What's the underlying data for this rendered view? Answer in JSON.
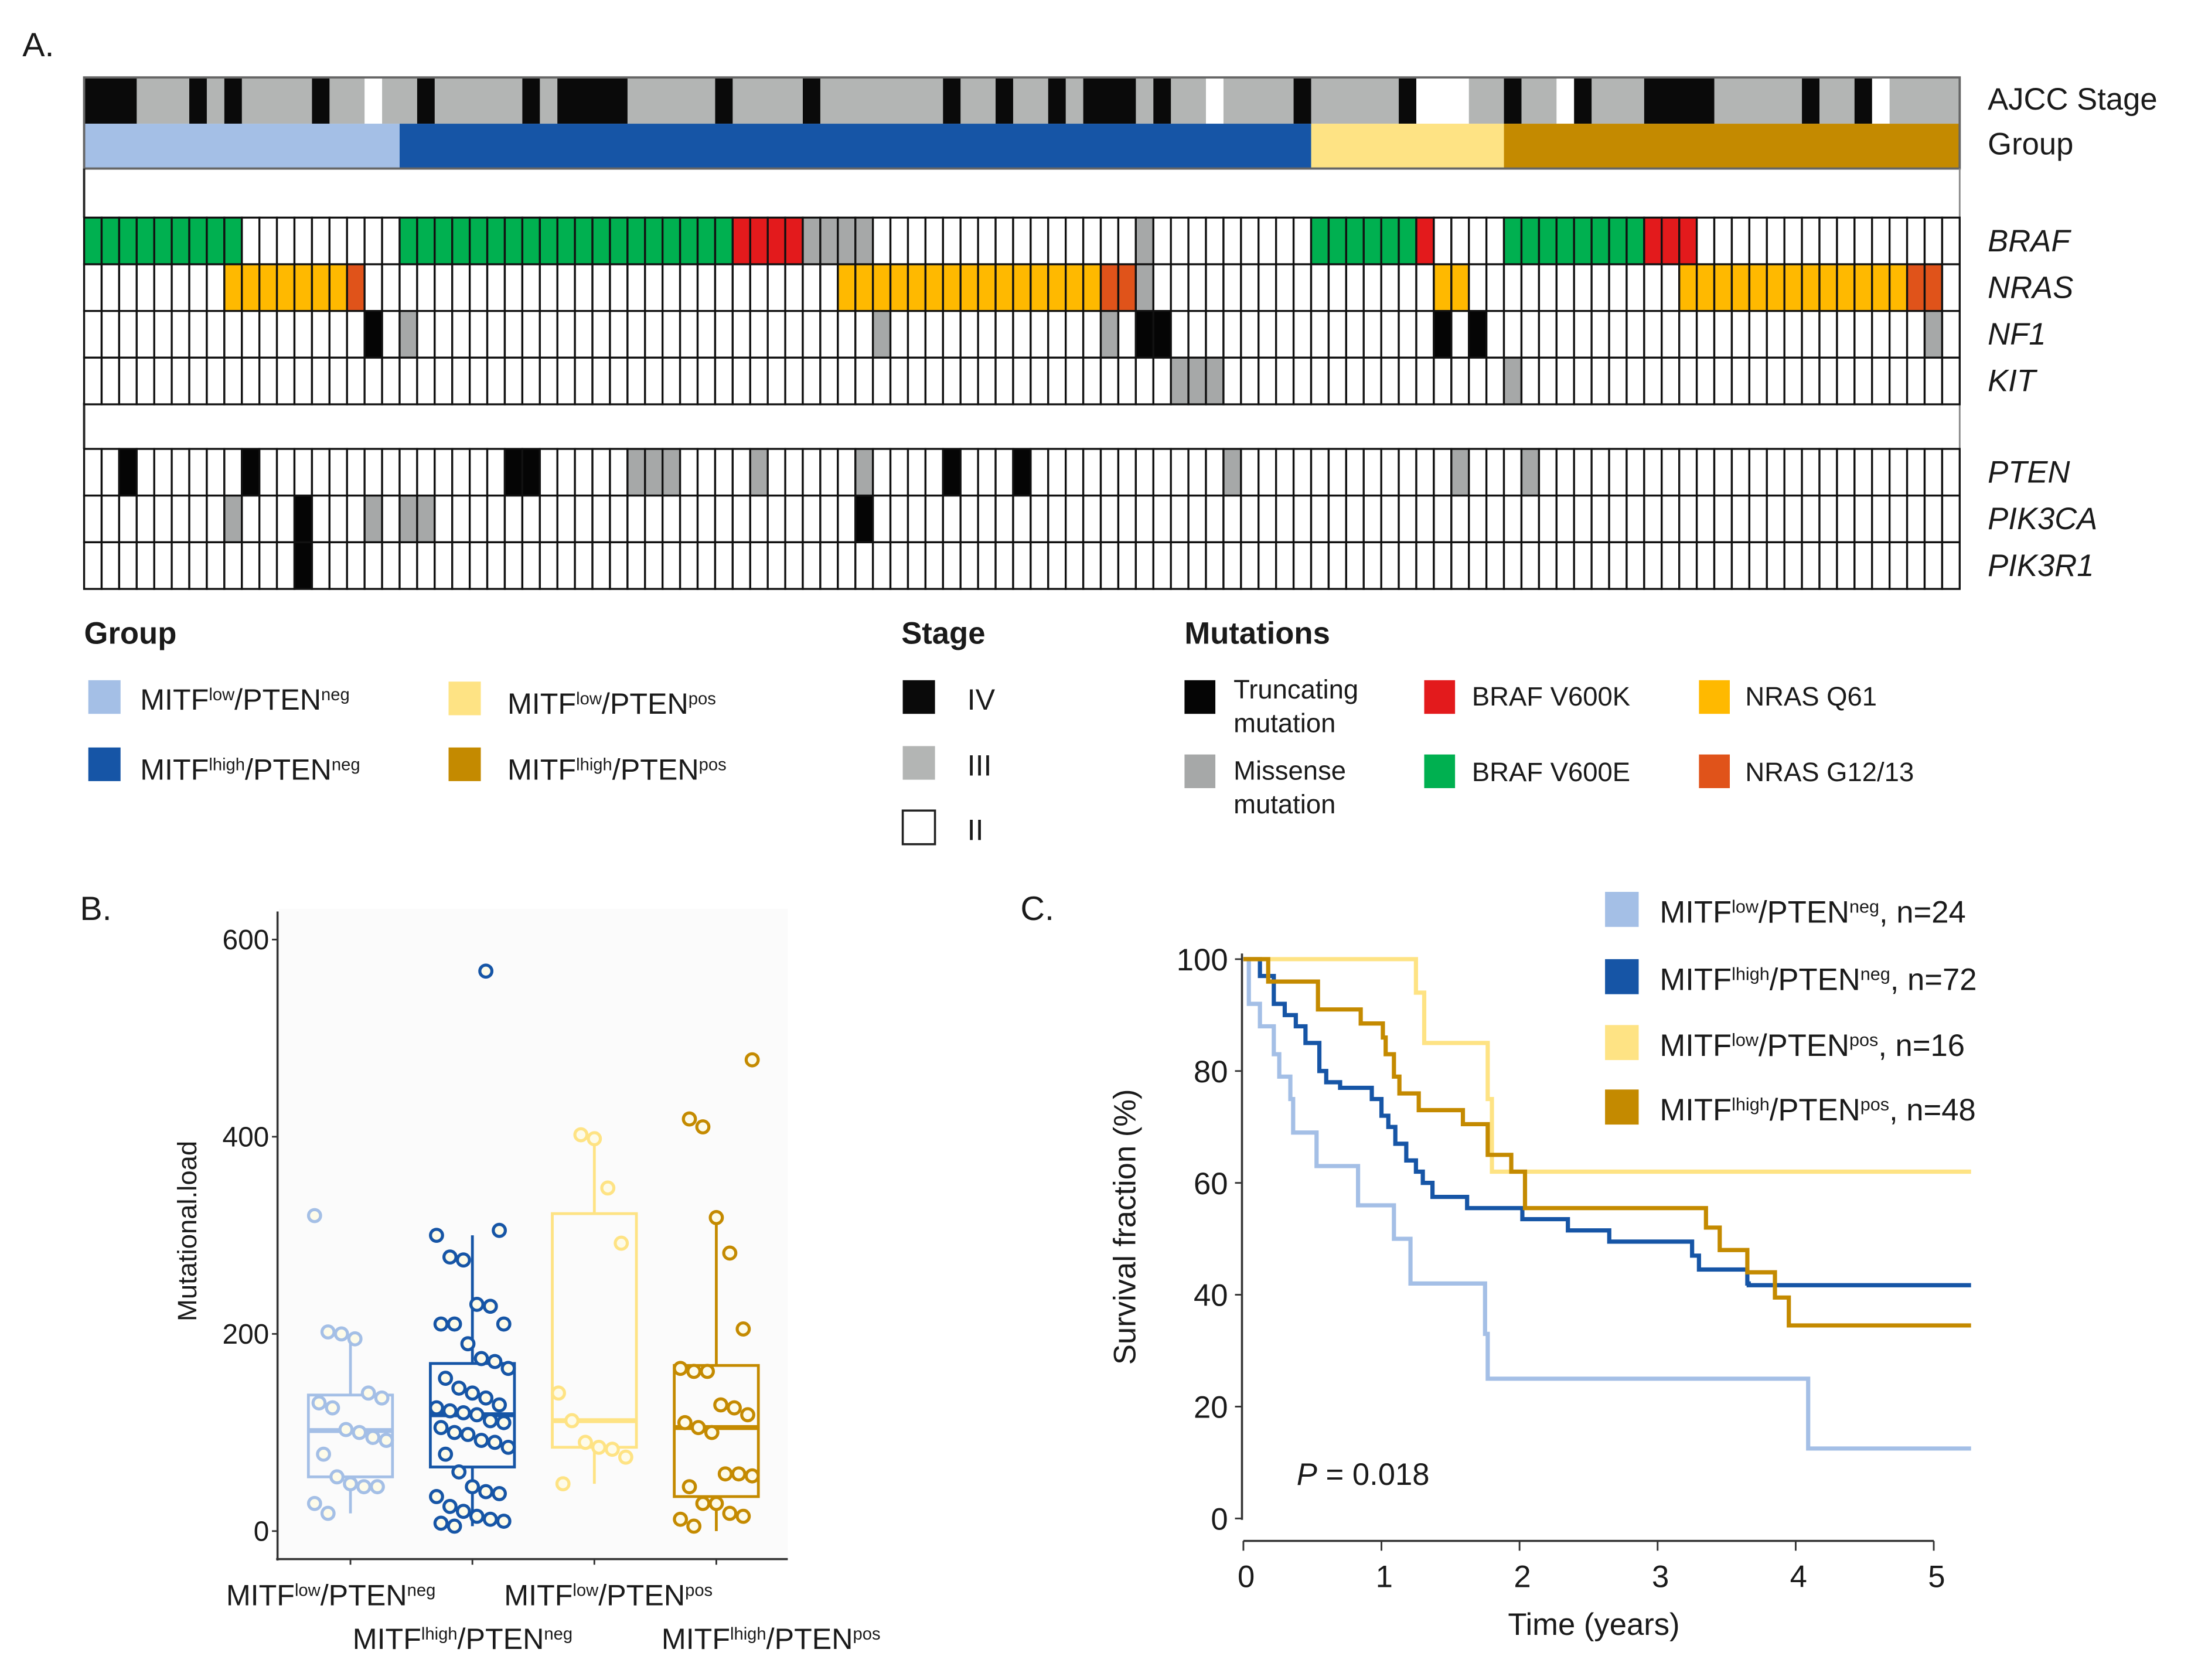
{
  "panel_labels": {
    "a": "A.",
    "b": "B.",
    "c": "C."
  },
  "groups": [
    {
      "id": "low-neg",
      "color": "#a4bfe6",
      "columns": 18,
      "label": [
        {
          "t": "MITF"
        },
        {
          "t": "low",
          "sup": true
        },
        {
          "t": "/PTEN"
        },
        {
          "t": "neg",
          "sup": true
        }
      ],
      "n_label": ", n=24"
    },
    {
      "id": "high-neg",
      "color": "#1655a6",
      "columns": 52,
      "label": [
        {
          "t": "MITF"
        },
        {
          "t": "lhigh",
          "sup": true
        },
        {
          "t": "/PTEN"
        },
        {
          "t": "neg",
          "sup": true
        }
      ],
      "n_label": ", n=72"
    },
    {
      "id": "low-pos",
      "color": "#fee384",
      "columns": 11,
      "label": [
        {
          "t": "MITF"
        },
        {
          "t": "low",
          "sup": true
        },
        {
          "t": "/PTEN"
        },
        {
          "t": "pos",
          "sup": true
        }
      ],
      "n_label": ", n=16"
    },
    {
      "id": "high-pos",
      "color": "#c48a00",
      "columns": 26,
      "label": [
        {
          "t": "MITF"
        },
        {
          "t": "lhigh",
          "sup": true
        },
        {
          "t": "/PTEN"
        },
        {
          "t": "pos",
          "sup": true
        }
      ],
      "n_label": ", n=48"
    }
  ],
  "oncoprint": {
    "n_columns": 107,
    "annotation_labels": {
      "stage": "AJCC Stage",
      "group": "Group"
    },
    "stage_colors": {
      "IV": "#0a0a0a",
      "III": "#b3b5b4",
      "II": "#ffffff"
    },
    "mutation_colors": {
      "V600E": "#00b050",
      "V600K": "#e31a1c",
      "Q61": "#ffb900",
      "G12/13": "#e0531a",
      "truncating": "#050505",
      "missense": "#a6a8a8"
    },
    "stage_runs": [
      [
        "IV",
        3
      ],
      [
        "III",
        3
      ],
      [
        "IV",
        1
      ],
      [
        "III",
        1
      ],
      [
        "IV",
        1
      ],
      [
        "III",
        4
      ],
      [
        "IV",
        1
      ],
      [
        "III",
        2
      ],
      [
        "II",
        1
      ],
      [
        "III",
        2
      ],
      [
        "IV",
        1
      ],
      [
        "III",
        5
      ],
      [
        "IV",
        1
      ],
      [
        "III",
        1
      ],
      [
        "IV",
        4
      ],
      [
        "III",
        5
      ],
      [
        "IV",
        1
      ],
      [
        "III",
        4
      ],
      [
        "IV",
        1
      ],
      [
        "III",
        7
      ],
      [
        "IV",
        1
      ],
      [
        "III",
        2
      ],
      [
        "IV",
        1
      ],
      [
        "III",
        2
      ],
      [
        "IV",
        1
      ],
      [
        "III",
        1
      ],
      [
        "IV",
        3
      ],
      [
        "III",
        1
      ],
      [
        "IV",
        1
      ],
      [
        "III",
        2
      ],
      [
        "II",
        1
      ],
      [
        "III",
        4
      ],
      [
        "IV",
        1
      ],
      [
        "III",
        5
      ],
      [
        "IV",
        1
      ],
      [
        "II",
        3
      ],
      [
        "III",
        2
      ],
      [
        "IV",
        1
      ],
      [
        "III",
        2
      ],
      [
        "II",
        1
      ],
      [
        "IV",
        1
      ],
      [
        "III",
        3
      ],
      [
        "IV",
        4
      ],
      [
        "III",
        5
      ],
      [
        "IV",
        1
      ],
      [
        "III",
        2
      ],
      [
        "IV",
        1
      ],
      [
        "II",
        1
      ],
      [
        "III",
        4
      ]
    ],
    "genes": [
      {
        "name": "BRAF",
        "block": 0,
        "mutations": [
          [
            0,
            9,
            "V600E"
          ],
          [
            18,
            19,
            "V600E"
          ],
          [
            37,
            4,
            "V600K"
          ],
          [
            41,
            4,
            "missense"
          ],
          [
            60,
            1,
            "missense"
          ],
          [
            70,
            6,
            "V600E"
          ],
          [
            76,
            1,
            "V600K"
          ],
          [
            81,
            8,
            "V600E"
          ],
          [
            89,
            3,
            "V600K"
          ]
        ]
      },
      {
        "name": "NRAS",
        "block": 0,
        "mutations": [
          [
            8,
            7,
            "Q61"
          ],
          [
            15,
            1,
            "G12/13"
          ],
          [
            43,
            15,
            "Q61"
          ],
          [
            58,
            2,
            "G12/13"
          ],
          [
            60,
            1,
            "missense"
          ],
          [
            77,
            2,
            "Q61"
          ],
          [
            91,
            13,
            "Q61"
          ],
          [
            104,
            2,
            "G12/13"
          ]
        ]
      },
      {
        "name": "NF1",
        "block": 0,
        "mutations": [
          [
            16,
            1,
            "truncating"
          ],
          [
            18,
            1,
            "missense"
          ],
          [
            45,
            1,
            "missense"
          ],
          [
            58,
            1,
            "missense"
          ],
          [
            60,
            2,
            "truncating"
          ],
          [
            77,
            1,
            "truncating"
          ],
          [
            79,
            1,
            "truncating"
          ],
          [
            105,
            1,
            "missense"
          ]
        ]
      },
      {
        "name": "KIT",
        "block": 0,
        "mutations": [
          [
            62,
            3,
            "missense"
          ],
          [
            81,
            1,
            "missense"
          ]
        ]
      },
      {
        "name": "PTEN",
        "block": 1,
        "mutations": [
          [
            2,
            1,
            "truncating"
          ],
          [
            9,
            1,
            "truncating"
          ],
          [
            24,
            2,
            "truncating"
          ],
          [
            31,
            3,
            "missense"
          ],
          [
            38,
            1,
            "missense"
          ],
          [
            44,
            1,
            "missense"
          ],
          [
            49,
            1,
            "truncating"
          ],
          [
            53,
            1,
            "truncating"
          ],
          [
            65,
            1,
            "missense"
          ],
          [
            78,
            1,
            "missense"
          ],
          [
            82,
            1,
            "missense"
          ]
        ]
      },
      {
        "name": "PIK3CA",
        "block": 1,
        "mutations": [
          [
            8,
            1,
            "missense"
          ],
          [
            12,
            1,
            "truncating"
          ],
          [
            16,
            1,
            "missense"
          ],
          [
            18,
            2,
            "missense"
          ],
          [
            44,
            1,
            "truncating"
          ]
        ]
      },
      {
        "name": "PIK3R1",
        "block": 1,
        "mutations": [
          [
            12,
            1,
            "truncating"
          ]
        ]
      }
    ]
  },
  "legend": {
    "group_title": "Group",
    "stage_title": "Stage",
    "stage_items": [
      {
        "key": "IV",
        "label": "IV"
      },
      {
        "key": "III",
        "label": "III"
      },
      {
        "key": "II",
        "label": "II"
      }
    ],
    "mutations_title": "Mutations",
    "mutation_items": [
      {
        "key": "truncating",
        "lines": [
          "Truncating",
          "mutation"
        ]
      },
      {
        "key": "missense",
        "lines": [
          "Missense",
          "mutation"
        ]
      },
      {
        "key": "V600K",
        "lines": [
          "BRAF V600K"
        ]
      },
      {
        "key": "V600E",
        "lines": [
          "BRAF V600E"
        ]
      },
      {
        "key": "Q61",
        "lines": [
          "NRAS Q61"
        ]
      },
      {
        "key": "G12/13",
        "lines": [
          "NRAS G12/13"
        ]
      }
    ]
  },
  "chart_data": [
    {
      "type": "box",
      "title": "",
      "ylabel": "Mutational.load",
      "xlabel": "",
      "ylim": [
        0,
        600
      ],
      "yticks": [
        0,
        200,
        400,
        600
      ],
      "categories": [
        "MITFlow/PTENneg",
        "MITFlhigh/PTENneg",
        "MITFlow/PTENpos",
        "MITFlhigh/PTENpos"
      ],
      "series": [
        {
          "group": 0,
          "q1": 55,
          "median": 102,
          "q3": 138,
          "whisker_low": 18,
          "whisker_high": 200,
          "points": [
            320,
            202,
            200,
            195,
            140,
            135,
            130,
            125,
            103,
            100,
            95,
            92,
            78,
            55,
            48,
            45,
            45,
            28,
            18
          ]
        },
        {
          "group": 1,
          "q1": 65,
          "median": 118,
          "q3": 170,
          "whisker_low": 5,
          "whisker_high": 300,
          "points": [
            568,
            305,
            300,
            278,
            275,
            230,
            228,
            210,
            210,
            210,
            190,
            175,
            172,
            165,
            155,
            145,
            140,
            135,
            128,
            125,
            122,
            120,
            118,
            112,
            110,
            105,
            100,
            98,
            92,
            90,
            85,
            78,
            60,
            45,
            40,
            38,
            35,
            25,
            20,
            15,
            12,
            10,
            8,
            5
          ]
        },
        {
          "group": 2,
          "q1": 85,
          "median": 112,
          "q3": 322,
          "whisker_low": 48,
          "whisker_high": 400,
          "points": [
            402,
            398,
            348,
            292,
            140,
            112,
            90,
            85,
            83,
            75,
            48
          ]
        },
        {
          "group": 3,
          "q1": 35,
          "median": 105,
          "q3": 168,
          "whisker_low": 0,
          "whisker_high": 318,
          "points": [
            478,
            418,
            410,
            318,
            282,
            205,
            165,
            162,
            162,
            128,
            125,
            118,
            110,
            105,
            100,
            58,
            58,
            56,
            45,
            28,
            28,
            18,
            15,
            12,
            5
          ]
        }
      ]
    },
    {
      "type": "line",
      "subtype": "kaplan-meier",
      "xlabel": "Time (years)",
      "ylabel": "Survival fraction (%)",
      "xlim": [
        0,
        5.3
      ],
      "ylim": [
        0,
        100
      ],
      "xticks": [
        0,
        1,
        2,
        3,
        4,
        5
      ],
      "yticks": [
        0,
        20,
        40,
        60,
        80,
        100
      ],
      "legend_position": "top-right",
      "annotation": {
        "p_symbol": "P",
        "p_text": " = 0.018"
      },
      "series": [
        {
          "group": 0,
          "end": 5.27,
          "steps": [
            [
              0.04,
              92
            ],
            [
              0.12,
              88
            ],
            [
              0.22,
              83
            ],
            [
              0.26,
              79
            ],
            [
              0.34,
              75
            ],
            [
              0.36,
              69
            ],
            [
              0.53,
              63
            ],
            [
              0.83,
              56
            ],
            [
              1.09,
              50
            ],
            [
              1.21,
              42
            ],
            [
              1.75,
              33
            ],
            [
              1.77,
              25
            ],
            [
              4.09,
              12.5
            ]
          ]
        },
        {
          "group": 1,
          "end": 5.27,
          "steps": [
            [
              0.12,
              97
            ],
            [
              0.22,
              92
            ],
            [
              0.3,
              90
            ],
            [
              0.38,
              88
            ],
            [
              0.45,
              85
            ],
            [
              0.55,
              80
            ],
            [
              0.6,
              78
            ],
            [
              0.7,
              77
            ],
            [
              0.93,
              75
            ],
            [
              1.0,
              72
            ],
            [
              1.05,
              70
            ],
            [
              1.1,
              67
            ],
            [
              1.18,
              64
            ],
            [
              1.25,
              62
            ],
            [
              1.3,
              60
            ],
            [
              1.37,
              57.5
            ],
            [
              1.62,
              55.5
            ],
            [
              2.02,
              53.5
            ],
            [
              2.35,
              51.5
            ],
            [
              2.65,
              49.5
            ],
            [
              3.25,
              47
            ],
            [
              3.3,
              44.5
            ],
            [
              3.65,
              42
            ],
            [
              3.66,
              41.7
            ]
          ]
        },
        {
          "group": 2,
          "end": 5.27,
          "steps": [
            [
              1.25,
              94
            ],
            [
              1.31,
              85
            ],
            [
              1.77,
              75
            ],
            [
              1.8,
              62
            ]
          ]
        },
        {
          "group": 3,
          "end": 5.27,
          "steps": [
            [
              0.18,
              96
            ],
            [
              0.54,
              91
            ],
            [
              0.85,
              88.5
            ],
            [
              1.01,
              86
            ],
            [
              1.03,
              83
            ],
            [
              1.09,
              79
            ],
            [
              1.13,
              76
            ],
            [
              1.27,
              73
            ],
            [
              1.59,
              70.5
            ],
            [
              1.77,
              65
            ],
            [
              1.94,
              62
            ],
            [
              2.04,
              55.5
            ],
            [
              3.35,
              52
            ],
            [
              3.45,
              48
            ],
            [
              3.65,
              44
            ],
            [
              3.85,
              39.5
            ],
            [
              3.95,
              34.5
            ]
          ]
        }
      ]
    }
  ]
}
